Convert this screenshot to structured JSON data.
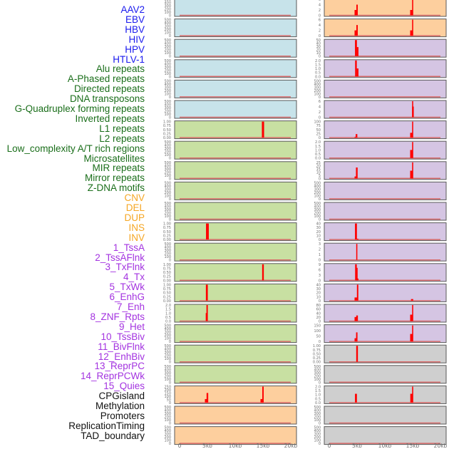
{
  "chart_data": {
    "type": "bar",
    "title": "",
    "xlabel": "",
    "ylabel": "",
    "x_ticks": [
      "0",
      "5kb",
      "10kb",
      "15kb",
      "20kb"
    ],
    "xlim_kb": [
      0,
      20
    ],
    "grid": false,
    "layout": "two columns of 22 small-multiple panels; labels listed on the left",
    "group_colors": {
      "virus": {
        "label": "#1a1aee",
        "panel": "#c7e3ea"
      },
      "repeat": {
        "label": "#1a6e1a",
        "panel": "#c8e0a2"
      },
      "sv": {
        "label": "#f5a623",
        "panel": "#fdcf9e"
      },
      "chromhmm": {
        "label": "#a333e0",
        "panel": "#d5c5e3"
      },
      "other": {
        "label": "#111111",
        "panel": "#cfcfcf"
      }
    },
    "bar_color": "#ff0000",
    "baseline_color": "#d86a6a",
    "tracks": [
      {
        "name": "AAV2",
        "group": "virus",
        "yticks": [
          "500",
          "400",
          "300",
          "200",
          "100",
          "0"
        ],
        "bars": []
      },
      {
        "name": "EBV",
        "group": "virus",
        "yticks": [
          "500",
          "400",
          "300",
          "200",
          "100",
          "0"
        ],
        "bars": []
      },
      {
        "name": "HBV",
        "group": "virus",
        "yticks": [
          "500",
          "400",
          "300",
          "200",
          "100",
          "0"
        ],
        "bars": []
      },
      {
        "name": "HIV",
        "group": "virus",
        "yticks": [
          "500",
          "400",
          "300",
          "200",
          "100",
          "0"
        ],
        "bars": []
      },
      {
        "name": "HPV",
        "group": "virus",
        "yticks": [
          "500",
          "400",
          "300",
          "200",
          "100",
          "0"
        ],
        "bars": []
      },
      {
        "name": "HTLV-1",
        "group": "virus",
        "yticks": [
          "500",
          "400",
          "300",
          "200",
          "100",
          "0"
        ],
        "bars": []
      },
      {
        "name": "Alu repeats",
        "group": "repeat",
        "yticks": [
          "1.00",
          "0.75",
          "0.50",
          "0.25",
          "0.00"
        ],
        "bars": [
          {
            "x_kb": 15.0,
            "width_kb": 0.4,
            "value": 1.0
          }
        ]
      },
      {
        "name": "A-Phased repeats",
        "group": "repeat",
        "yticks": [
          "500",
          "400",
          "300",
          "200",
          "100",
          "0"
        ],
        "bars": []
      },
      {
        "name": "Directed repeats",
        "group": "repeat",
        "yticks": [
          "500",
          "400",
          "300",
          "200",
          "100",
          "0"
        ],
        "bars": []
      },
      {
        "name": "DNA transposons",
        "group": "repeat",
        "yticks": [
          "500",
          "400",
          "300",
          "200",
          "100",
          "0"
        ],
        "bars": []
      },
      {
        "name": "G-Quadruplex forming repeats",
        "group": "repeat",
        "yticks": [
          "500",
          "400",
          "300",
          "200",
          "100",
          "0"
        ],
        "bars": []
      },
      {
        "name": "Inverted repeats",
        "group": "repeat",
        "yticks": [
          "1.00",
          "0.75",
          "0.50",
          "0.25",
          "0.00"
        ],
        "bars": [
          {
            "x_kb": 5.0,
            "width_kb": 0.5,
            "value": 1.0
          }
        ]
      },
      {
        "name": "L1 repeats",
        "group": "repeat",
        "yticks": [
          "500",
          "400",
          "300",
          "200",
          "100",
          "0"
        ],
        "bars": []
      },
      {
        "name": "L2 repeats",
        "group": "repeat",
        "yticks": [
          "1.00",
          "0.75",
          "0.50",
          "0.25",
          "0.00"
        ],
        "bars": [
          {
            "x_kb": 15.0,
            "width_kb": 0.3,
            "value": 1.0
          }
        ]
      },
      {
        "name": "Low_complexity A/T rich regions",
        "group": "repeat",
        "yticks": [
          "1.00",
          "0.75",
          "0.50",
          "0.25",
          "0.00"
        ],
        "bars": [
          {
            "x_kb": 4.9,
            "width_kb": 0.35,
            "value": 1.0
          }
        ]
      },
      {
        "name": "Microsatellites",
        "group": "repeat",
        "yticks": [
          "2.0",
          "1.5",
          "1.0",
          "0.5",
          "0.0"
        ],
        "bars": [
          {
            "x_kb": 4.8,
            "width_kb": 0.2,
            "value": 1.0
          },
          {
            "x_kb": 4.95,
            "width_kb": 0.25,
            "value": 2.0
          }
        ]
      },
      {
        "name": "MIR repeats",
        "group": "repeat",
        "yticks": [
          "500",
          "400",
          "300",
          "200",
          "100",
          "0"
        ],
        "bars": []
      },
      {
        "name": "Mirror repeats",
        "group": "repeat",
        "yticks": [
          "500",
          "400",
          "300",
          "200",
          "100",
          "0"
        ],
        "bars": []
      },
      {
        "name": "Z-DNA motifs",
        "group": "repeat",
        "yticks": [
          "500",
          "400",
          "300",
          "200",
          "100",
          "0"
        ],
        "bars": []
      },
      {
        "name": "CNV",
        "group": "sv",
        "yticks": [
          "250",
          "200",
          "150",
          "100",
          "50",
          "0"
        ],
        "bars": [
          {
            "x_kb": 4.8,
            "width_kb": 0.5,
            "value": 55
          },
          {
            "x_kb": 5.0,
            "width_kb": 0.3,
            "value": 150
          },
          {
            "x_kb": 14.8,
            "width_kb": 0.5,
            "value": 55
          },
          {
            "x_kb": 15.0,
            "width_kb": 0.25,
            "value": 250
          }
        ]
      },
      {
        "name": "DEL",
        "group": "sv",
        "yticks": [
          "500",
          "400",
          "300",
          "200",
          "100",
          "0"
        ],
        "bars": []
      },
      {
        "name": "DUP",
        "group": "sv",
        "yticks": [
          "500",
          "400",
          "300",
          "200",
          "100",
          "0"
        ],
        "bars": []
      },
      {
        "name": "INS",
        "group": "sv",
        "yticks": [
          "6",
          "4",
          "2",
          "0"
        ],
        "bars": [
          {
            "x_kb": 4.8,
            "width_kb": 0.5,
            "value": 2
          },
          {
            "x_kb": 5.0,
            "width_kb": 0.25,
            "value": 4
          },
          {
            "x_kb": 14.8,
            "width_kb": 0.5,
            "value": 2
          },
          {
            "x_kb": 15.0,
            "width_kb": 0.2,
            "value": 6
          }
        ]
      },
      {
        "name": "INV",
        "group": "sv",
        "yticks": [
          "6",
          "4",
          "2",
          "0"
        ],
        "bars": [
          {
            "x_kb": 4.8,
            "width_kb": 0.5,
            "value": 2
          },
          {
            "x_kb": 5.0,
            "width_kb": 0.25,
            "value": 4
          },
          {
            "x_kb": 14.8,
            "width_kb": 0.5,
            "value": 2
          },
          {
            "x_kb": 15.0,
            "width_kb": 0.2,
            "value": 6
          }
        ]
      },
      {
        "name": "1_TssA",
        "group": "chromhmm",
        "yticks": [
          "50",
          "40",
          "30",
          "20",
          "10",
          "0"
        ],
        "bars": [
          {
            "x_kb": 4.8,
            "width_kb": 0.35,
            "value": 50
          },
          {
            "x_kb": 5.1,
            "width_kb": 0.3,
            "value": 28
          }
        ]
      },
      {
        "name": "2_TssAFlnk",
        "group": "chromhmm",
        "yticks": [
          "2.0",
          "1.5",
          "1.0",
          "0.5",
          "0.0"
        ],
        "bars": [
          {
            "x_kb": 4.8,
            "width_kb": 0.3,
            "value": 2.0
          },
          {
            "x_kb": 5.1,
            "width_kb": 0.3,
            "value": 1.0
          }
        ]
      },
      {
        "name": "3_TxFlnk",
        "group": "chromhmm",
        "yticks": [
          "500",
          "400",
          "300",
          "200",
          "100",
          "0"
        ],
        "bars": []
      },
      {
        "name": "4_Tx",
        "group": "chromhmm",
        "yticks": [
          "6",
          "4",
          "2",
          "0"
        ],
        "bars": [
          {
            "x_kb": 15.0,
            "width_kb": 0.2,
            "value": 6
          },
          {
            "x_kb": 15.05,
            "width_kb": 0.3,
            "value": 4
          }
        ]
      },
      {
        "name": "5_TxWk",
        "group": "chromhmm",
        "yticks": [
          "100",
          "75",
          "50",
          "25",
          "0"
        ],
        "bars": [
          {
            "x_kb": 4.8,
            "width_kb": 0.5,
            "value": 5
          },
          {
            "x_kb": 4.9,
            "width_kb": 0.3,
            "value": 22
          },
          {
            "x_kb": 14.8,
            "width_kb": 0.5,
            "value": 30
          },
          {
            "x_kb": 15.0,
            "width_kb": 0.2,
            "value": 100
          }
        ]
      },
      {
        "name": "6_EnhG",
        "group": "chromhmm",
        "yticks": [
          "2.0",
          "1.5",
          "1.0",
          "0.5",
          "0.0"
        ],
        "bars": [
          {
            "x_kb": 14.8,
            "width_kb": 0.5,
            "value": 1.0
          },
          {
            "x_kb": 15.0,
            "width_kb": 0.2,
            "value": 2.0
          }
        ]
      },
      {
        "name": "7_Enh",
        "group": "chromhmm",
        "yticks": [
          "25",
          "20",
          "15",
          "10",
          "5",
          "0"
        ],
        "bars": [
          {
            "x_kb": 4.8,
            "width_kb": 0.5,
            "value": 3
          },
          {
            "x_kb": 4.95,
            "width_kb": 0.3,
            "value": 17
          },
          {
            "x_kb": 14.8,
            "width_kb": 0.5,
            "value": 12
          },
          {
            "x_kb": 15.0,
            "width_kb": 0.2,
            "value": 25
          }
        ]
      },
      {
        "name": "8_ZNF_Rpts",
        "group": "chromhmm",
        "yticks": [
          "500",
          "400",
          "300",
          "200",
          "100",
          "0"
        ],
        "bars": []
      },
      {
        "name": "9_Het",
        "group": "chromhmm",
        "yticks": [
          "500",
          "400",
          "300",
          "200",
          "100",
          "0"
        ],
        "bars": []
      },
      {
        "name": "10_TssBiv",
        "group": "chromhmm",
        "yticks": [
          "40",
          "30",
          "20",
          "10",
          "0"
        ],
        "bars": [
          {
            "x_kb": 4.8,
            "width_kb": 0.35,
            "value": 45
          },
          {
            "x_kb": 5.1,
            "width_kb": 0.3,
            "value": 2
          }
        ]
      },
      {
        "name": "11_BivFlnk",
        "group": "chromhmm",
        "yticks": [
          "3",
          "2",
          "1",
          "0"
        ],
        "bars": [
          {
            "x_kb": 4.95,
            "width_kb": 0.2,
            "value": 3
          }
        ]
      },
      {
        "name": "12_EnhBiv",
        "group": "chromhmm",
        "yticks": [
          "9",
          "6",
          "3",
          "0"
        ],
        "bars": [
          {
            "x_kb": 4.8,
            "width_kb": 0.3,
            "value": 11
          },
          {
            "x_kb": 5.0,
            "width_kb": 0.2,
            "value": 7
          },
          {
            "x_kb": 5.1,
            "width_kb": 0.3,
            "value": 1
          }
        ]
      },
      {
        "name": "13_ReprPC",
        "group": "chromhmm",
        "yticks": [
          "40",
          "30",
          "20",
          "10",
          "0"
        ],
        "bars": [
          {
            "x_kb": 4.8,
            "width_kb": 0.5,
            "value": 8
          },
          {
            "x_kb": 5.1,
            "width_kb": 0.25,
            "value": 45
          },
          {
            "x_kb": 14.9,
            "width_kb": 0.4,
            "value": 4
          }
        ]
      },
      {
        "name": "14_ReprPCWk",
        "group": "chromhmm",
        "yticks": [
          "80",
          "60",
          "40",
          "20",
          "0"
        ],
        "bars": [
          {
            "x_kb": 4.8,
            "width_kb": 0.5,
            "value": 20
          },
          {
            "x_kb": 5.0,
            "width_kb": 0.3,
            "value": 28
          },
          {
            "x_kb": 14.8,
            "width_kb": 0.5,
            "value": 32
          },
          {
            "x_kb": 15.0,
            "width_kb": 0.2,
            "value": 80
          }
        ]
      },
      {
        "name": "15_Quies",
        "group": "chromhmm",
        "yticks": [
          "150",
          "100",
          "50",
          "0"
        ],
        "bars": [
          {
            "x_kb": 4.8,
            "width_kb": 0.5,
            "value": 30
          },
          {
            "x_kb": 4.95,
            "width_kb": 0.25,
            "value": 85
          },
          {
            "x_kb": 14.8,
            "width_kb": 0.5,
            "value": 70
          },
          {
            "x_kb": 15.0,
            "width_kb": 0.2,
            "value": 190
          }
        ]
      },
      {
        "name": "CPGisland",
        "group": "other",
        "yticks": [
          "1.00",
          "0.75",
          "0.50",
          "0.25",
          "0.00"
        ],
        "bars": [
          {
            "x_kb": 5.0,
            "width_kb": 0.3,
            "value": 1.0
          }
        ]
      },
      {
        "name": "Methylation",
        "group": "other",
        "yticks": [
          "500",
          "400",
          "300",
          "200",
          "100",
          "0"
        ],
        "bars": []
      },
      {
        "name": "Promoters",
        "group": "other",
        "yticks": [
          "2.0",
          "1.5",
          "1.0",
          "0.5",
          "0.0"
        ],
        "bars": [
          {
            "x_kb": 4.8,
            "width_kb": 0.35,
            "value": 1.1
          },
          {
            "x_kb": 14.8,
            "width_kb": 0.45,
            "value": 1.1
          },
          {
            "x_kb": 15.0,
            "width_kb": 0.2,
            "value": 2.0
          }
        ]
      },
      {
        "name": "ReplicationTiming",
        "group": "other",
        "yticks": [
          "500",
          "400",
          "300",
          "200",
          "100",
          "0"
        ],
        "bars": []
      },
      {
        "name": "TAD_boundary",
        "group": "other",
        "yticks": [
          "500",
          "400",
          "300",
          "200",
          "100",
          "0"
        ],
        "bars": []
      }
    ]
  }
}
